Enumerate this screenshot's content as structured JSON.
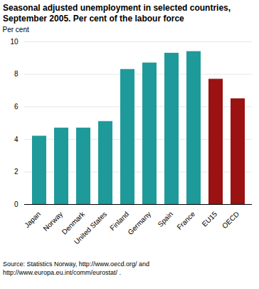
{
  "chart_data": {
    "type": "bar",
    "title": "Seasonal adjusted unemployment in selected countries, September 2005. Per cent of the labour force",
    "y_label": "Per cent",
    "categories": [
      "Japan",
      "Norway",
      "Denmark",
      "United States",
      "Finland",
      "Germany",
      "Spain",
      "France",
      "EU15",
      "OECD"
    ],
    "values": [
      4.2,
      4.7,
      4.7,
      5.1,
      8.3,
      8.7,
      9.3,
      9.4,
      7.7,
      6.5
    ],
    "colors": [
      "#1f9a9a",
      "#1f9a9a",
      "#1f9a9a",
      "#1f9a9a",
      "#1f9a9a",
      "#1f9a9a",
      "#1f9a9a",
      "#1f9a9a",
      "#9b1212",
      "#9b1212"
    ],
    "ylim": [
      0,
      10
    ],
    "yticks": [
      0,
      2,
      4,
      6,
      8,
      10
    ],
    "grid": true,
    "caption": "Source: Statistics Norway, http://www.oecd.org/ and http://www.europa.eu.int/comm/eurostat/ ."
  }
}
